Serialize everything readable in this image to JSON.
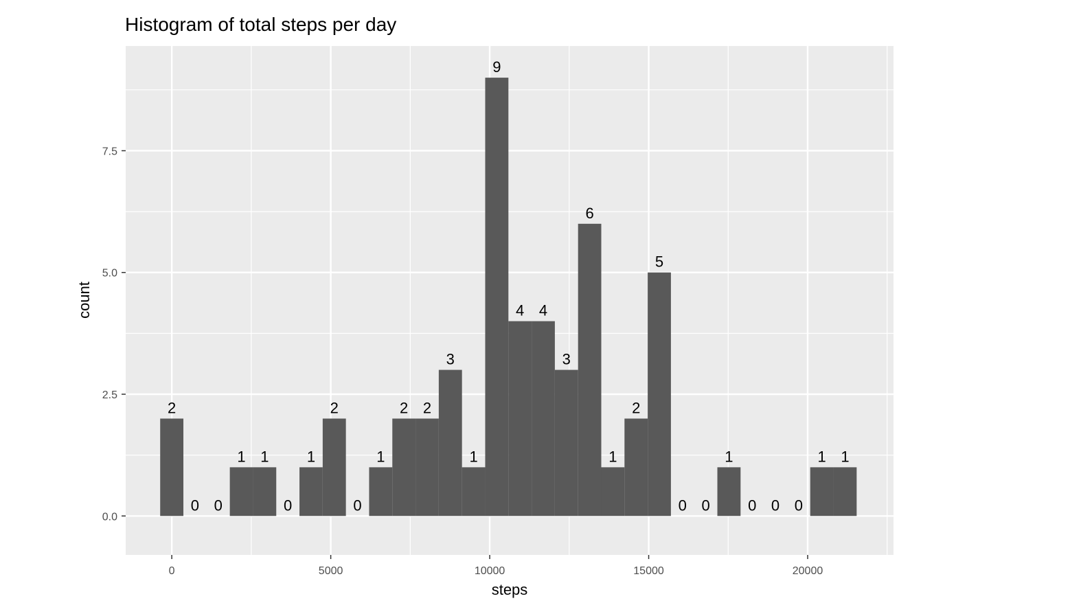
{
  "chart_data": {
    "type": "bar",
    "title": "Histogram of total steps per day",
    "xlabel": "steps",
    "ylabel": "count",
    "xlim": [
      -1450,
      22700
    ],
    "ylim": [
      -0.8,
      9.65
    ],
    "bin_width": 730.2,
    "bin_centers": [
      0,
      730.2,
      1460.4,
      2190.6,
      2920.8,
      3651,
      4381.2,
      5111.4,
      5841.6,
      6571.8,
      7302,
      8032.2,
      8762.4,
      9492.6,
      10222.8,
      10953,
      11683.2,
      12413.4,
      13143.6,
      13873.8,
      14604,
      15334.2,
      16064.4,
      16794.6,
      17524.8,
      18255,
      18985.2,
      19715.4,
      20445.6,
      21175.8
    ],
    "values": [
      2,
      0,
      0,
      1,
      1,
      0,
      1,
      2,
      0,
      1,
      2,
      2,
      3,
      1,
      9,
      4,
      4,
      3,
      6,
      1,
      2,
      5,
      0,
      0,
      1,
      0,
      0,
      0,
      1,
      1
    ],
    "x_ticks": [
      0,
      5000,
      10000,
      15000,
      20000
    ],
    "x_tick_labels": [
      "0",
      "5000",
      "10000",
      "15000",
      "20000"
    ],
    "y_ticks": [
      0,
      2.5,
      5,
      7.5
    ],
    "y_tick_labels": [
      "0.0",
      "2.5",
      "5.0",
      "7.5"
    ],
    "grid": true,
    "colors": {
      "panel_background": "#ebebeb",
      "grid_major": "#ffffff",
      "bar_fill": "#595959",
      "tick_label": "#4d4d4d",
      "text": "#000000"
    }
  }
}
